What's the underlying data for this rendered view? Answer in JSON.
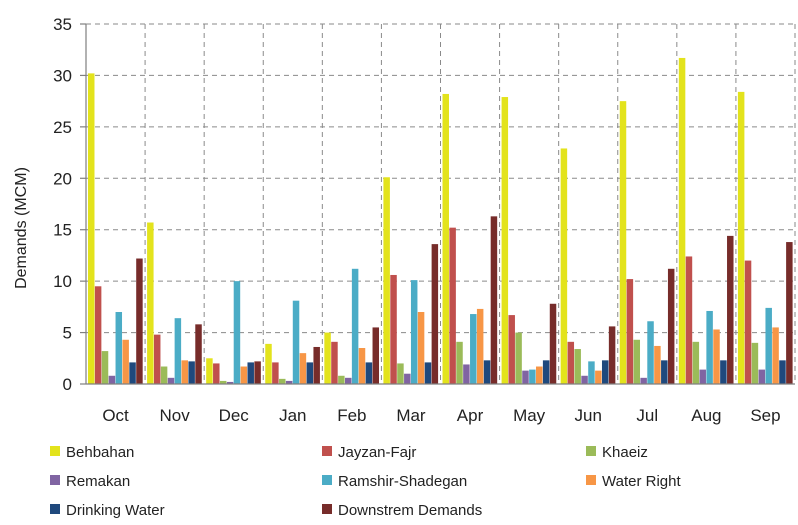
{
  "chart_data": {
    "type": "bar",
    "title": "",
    "xlabel": "",
    "ylabel": "Demands (MCM)",
    "ylim": [
      0,
      35
    ],
    "yticks": [
      0,
      5,
      10,
      15,
      20,
      25,
      30,
      35
    ],
    "grid": true,
    "legend_position": "bottom",
    "categories": [
      "Oct",
      "Nov",
      "Dec",
      "Jan",
      "Feb",
      "Mar",
      "Apr",
      "May",
      "Jun",
      "Jul",
      "Aug",
      "Sep"
    ],
    "series": [
      {
        "name": "Behbahan",
        "color": "#e3e31c",
        "values": [
          30.2,
          15.7,
          2.5,
          3.9,
          5.0,
          20.1,
          28.2,
          27.9,
          22.9,
          27.5,
          31.7,
          28.4
        ]
      },
      {
        "name": "Jayzan-Fajr",
        "color": "#c0504d",
        "values": [
          9.5,
          4.8,
          2.0,
          2.1,
          4.1,
          10.6,
          15.2,
          6.7,
          4.1,
          10.2,
          12.4,
          12.0
        ]
      },
      {
        "name": "Khaeiz",
        "color": "#9bbb59",
        "values": [
          3.2,
          1.7,
          0.3,
          0.5,
          0.8,
          2.0,
          4.1,
          5.0,
          3.4,
          4.3,
          4.1,
          4.0
        ]
      },
      {
        "name": "Remakan",
        "color": "#8064a2",
        "values": [
          0.8,
          0.6,
          0.2,
          0.3,
          0.6,
          1.0,
          1.9,
          1.3,
          0.8,
          0.6,
          1.4,
          1.4
        ]
      },
      {
        "name": "Ramshir-Shadegan",
        "color": "#4bacc6",
        "values": [
          7.0,
          6.4,
          10.0,
          8.1,
          11.2,
          10.1,
          6.8,
          1.4,
          2.2,
          6.1,
          7.1,
          7.4
        ]
      },
      {
        "name": "Water Right",
        "color": "#f79646",
        "values": [
          4.3,
          2.3,
          1.7,
          3.0,
          3.5,
          7.0,
          7.3,
          1.7,
          1.3,
          3.7,
          5.3,
          5.5
        ]
      },
      {
        "name": "Drinking Water",
        "color": "#1f497d",
        "values": [
          2.1,
          2.2,
          2.1,
          2.1,
          2.1,
          2.1,
          2.3,
          2.3,
          2.3,
          2.3,
          2.3,
          2.3
        ]
      },
      {
        "name": "Downstrem Demands",
        "color": "#772c2a",
        "values": [
          12.2,
          5.8,
          2.2,
          3.6,
          5.5,
          13.6,
          16.3,
          7.8,
          5.6,
          11.2,
          14.4,
          13.8
        ]
      }
    ]
  }
}
